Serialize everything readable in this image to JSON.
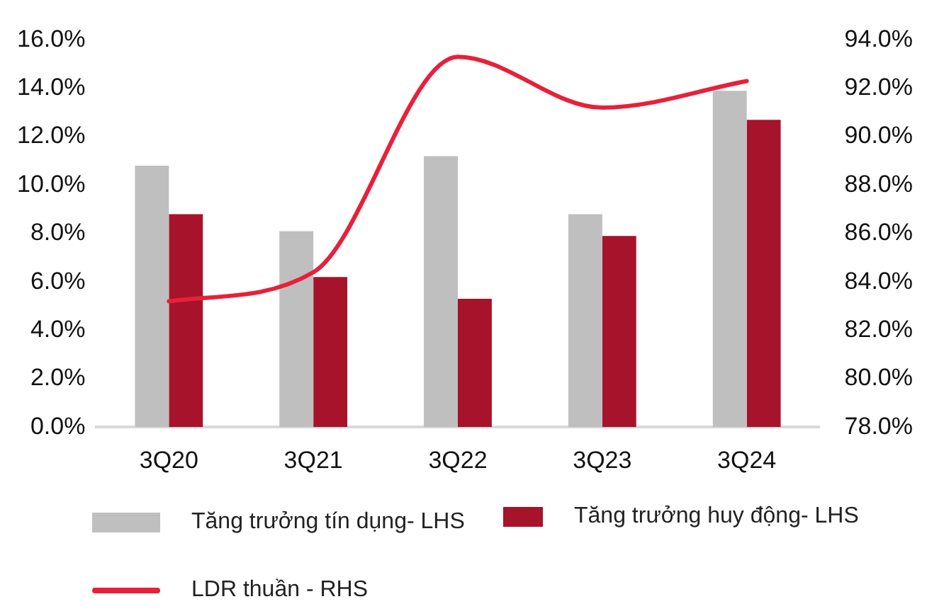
{
  "chart_data": {
    "type": "bar",
    "categories": [
      "3Q20",
      "3Q21",
      "3Q22",
      "3Q23",
      "3Q24"
    ],
    "series": [
      {
        "name": "Tăng trưởng tín dụng- LHS",
        "color": "#bfbfbf",
        "values": [
          10.8,
          8.1,
          11.2,
          8.8,
          13.9
        ]
      },
      {
        "name": "Tăng trưởng huy động- LHS",
        "color": "#a6132b",
        "values": [
          8.8,
          6.2,
          5.3,
          7.9,
          12.7
        ]
      },
      {
        "name": "LDR thuần - RHS",
        "type": "line",
        "axis": "y2",
        "color": "#e8203a",
        "values": [
          83.2,
          84.4,
          93.3,
          91.2,
          92.3
        ]
      }
    ],
    "ylim": [
      0,
      16
    ],
    "yticks": [
      {
        "value": 0,
        "label": "0.0%"
      },
      {
        "value": 2,
        "label": "2.0%"
      },
      {
        "value": 4,
        "label": "4.0%"
      },
      {
        "value": 6,
        "label": "6.0%"
      },
      {
        "value": 8,
        "label": "8.0%"
      },
      {
        "value": 10,
        "label": "10.0%"
      },
      {
        "value": 12,
        "label": "12.0%"
      },
      {
        "value": 14,
        "label": "14.0%"
      },
      {
        "value": 16,
        "label": "16.0%"
      }
    ],
    "y2lim": [
      78,
      94
    ],
    "y2ticks": [
      {
        "value": 78,
        "label": "78.0%"
      },
      {
        "value": 80,
        "label": "80.0%"
      },
      {
        "value": 82,
        "label": "82.0%"
      },
      {
        "value": 84,
        "label": "84.0%"
      },
      {
        "value": 86,
        "label": "86.0%"
      },
      {
        "value": 88,
        "label": "88.0%"
      },
      {
        "value": 90,
        "label": "90.0%"
      },
      {
        "value": 92,
        "label": "92.0%"
      },
      {
        "value": 94,
        "label": "94.0%"
      }
    ],
    "grid": false,
    "legend": "bottom",
    "marker": "none"
  }
}
